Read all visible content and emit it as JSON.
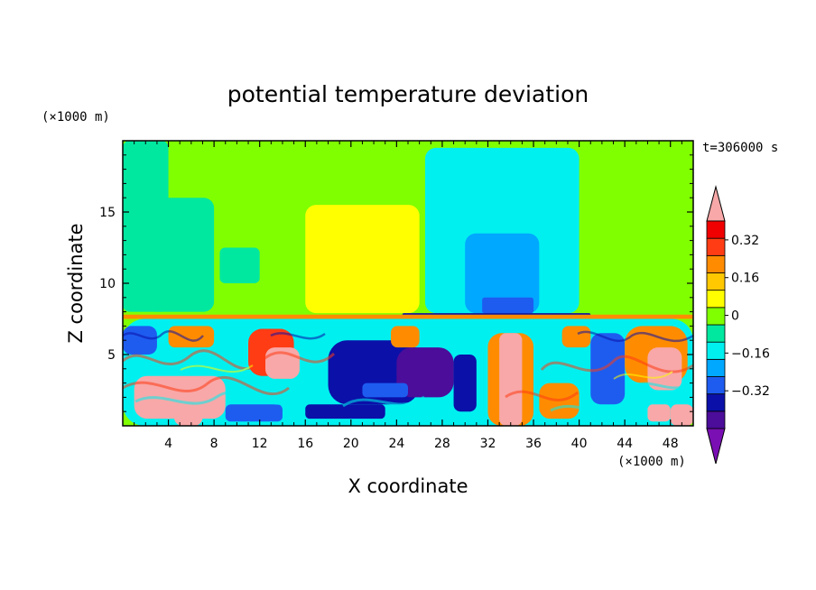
{
  "chart_data": {
    "type": "heatmap",
    "title": "potential temperature deviation",
    "time_label": "t=306000 s",
    "xlabel": "X coordinate",
    "ylabel": "Z coordinate",
    "x_unit": "(×1000 m)",
    "y_unit": "(×1000 m)",
    "xlim": [
      0,
      50
    ],
    "ylim": [
      0,
      20
    ],
    "x_ticks": [
      4,
      8,
      12,
      16,
      20,
      24,
      28,
      32,
      36,
      40,
      44,
      48
    ],
    "y_ticks": [
      5,
      10,
      15
    ],
    "colorbar": {
      "levels": [
        -0.48,
        -0.4,
        -0.32,
        -0.24,
        -0.16,
        -0.08,
        0,
        0.08,
        0.16,
        0.24,
        0.32,
        0.4
      ],
      "labels": [
        "-0.32",
        "-0.16",
        "0",
        "0.16",
        "0.32"
      ],
      "label_values": [
        -0.32,
        -0.16,
        0,
        0.16,
        0.32
      ],
      "colors": [
        "#7a0fb4",
        "#4b0d9a",
        "#0b10a8",
        "#1e5cf0",
        "#00a8ff",
        "#00f0f0",
        "#00e8a0",
        "#80ff00",
        "#ffff00",
        "#ffc800",
        "#ff8c00",
        "#ff3c14",
        "#f00000",
        "#f8a8a8"
      ],
      "extend": "both"
    },
    "regions": [
      {
        "x": [
          0,
          50
        ],
        "z": [
          7.7,
          20
        ],
        "value": 0.0
      },
      {
        "x": [
          0,
          4
        ],
        "z": [
          8,
          20
        ],
        "value": -0.05
      },
      {
        "x": [
          2,
          8
        ],
        "z": [
          8,
          16
        ],
        "value": -0.05
      },
      {
        "x": [
          8.5,
          12
        ],
        "z": [
          10,
          12.5
        ],
        "value": -0.05
      },
      {
        "x": [
          16,
          26
        ],
        "z": [
          7.9,
          15.5
        ],
        "value": 0.12
      },
      {
        "x": [
          26.5,
          40
        ],
        "z": [
          7.9,
          19.5
        ],
        "value": -0.1
      },
      {
        "x": [
          28,
          39
        ],
        "z": [
          7.9,
          18.5
        ],
        "value": -0.15
      },
      {
        "x": [
          30,
          36.5
        ],
        "z": [
          7.9,
          13.5
        ],
        "value": -0.24
      },
      {
        "x": [
          31.5,
          36
        ],
        "z": [
          7.9,
          9
        ],
        "value": -0.32
      },
      {
        "x": [
          24.5,
          41
        ],
        "z": [
          7.5,
          7.9
        ],
        "value": -0.4
      },
      {
        "x": [
          0,
          50
        ],
        "z": [
          7.5,
          7.8
        ],
        "value": 0.3
      },
      {
        "x": [
          0,
          50
        ],
        "z": [
          0,
          7.5
        ],
        "value": 0.03
      },
      {
        "x": [
          0,
          50
        ],
        "z": [
          0,
          7.5
        ],
        "value": -0.1
      },
      {
        "x": [
          1,
          9
        ],
        "z": [
          0.5,
          3.5
        ],
        "value": 0.45
      },
      {
        "x": [
          4.5,
          7
        ],
        "z": [
          0,
          2.5
        ],
        "value": 0.5
      },
      {
        "x": [
          11,
          15
        ],
        "z": [
          3.5,
          6.8
        ],
        "value": 0.35
      },
      {
        "x": [
          12.5,
          15.5
        ],
        "z": [
          3.3,
          5.5
        ],
        "value": 0.45
      },
      {
        "x": [
          9,
          14
        ],
        "z": [
          0.3,
          1.5
        ],
        "value": -0.3
      },
      {
        "x": [
          16,
          23
        ],
        "z": [
          0.5,
          1.5
        ],
        "value": -0.4
      },
      {
        "x": [
          18,
          26
        ],
        "z": [
          1.5,
          6
        ],
        "value": -0.4
      },
      {
        "x": [
          24,
          29
        ],
        "z": [
          2,
          5.5
        ],
        "value": -0.42
      },
      {
        "x": [
          21,
          25
        ],
        "z": [
          2,
          3
        ],
        "value": -0.3
      },
      {
        "x": [
          32,
          36
        ],
        "z": [
          0,
          6.5
        ],
        "value": 0.3
      },
      {
        "x": [
          33,
          35
        ],
        "z": [
          0,
          6.5
        ],
        "value": 0.45
      },
      {
        "x": [
          29,
          31
        ],
        "z": [
          1,
          5
        ],
        "value": -0.4
      },
      {
        "x": [
          36.5,
          40
        ],
        "z": [
          0.5,
          3
        ],
        "value": 0.3
      },
      {
        "x": [
          41,
          44
        ],
        "z": [
          1.5,
          6.5
        ],
        "value": -0.3
      },
      {
        "x": [
          44,
          49.5
        ],
        "z": [
          3,
          7
        ],
        "value": 0.3
      },
      {
        "x": [
          46,
          49
        ],
        "z": [
          2.5,
          5.5
        ],
        "value": 0.4
      },
      {
        "x": [
          46,
          48
        ],
        "z": [
          0.3,
          1.5
        ],
        "value": 0.4
      },
      {
        "x": [
          48,
          50
        ],
        "z": [
          0,
          1.5
        ],
        "value": 0.5
      },
      {
        "x": [
          0,
          3
        ],
        "z": [
          5,
          7
        ],
        "value": -0.3
      },
      {
        "x": [
          4,
          8
        ],
        "z": [
          5.5,
          7
        ],
        "value": 0.3
      },
      {
        "x": [
          23.5,
          26
        ],
        "z": [
          5.5,
          7
        ],
        "value": 0.3
      },
      {
        "x": [
          38.5,
          41
        ],
        "z": [
          5.5,
          7
        ],
        "value": 0.3
      }
    ]
  }
}
